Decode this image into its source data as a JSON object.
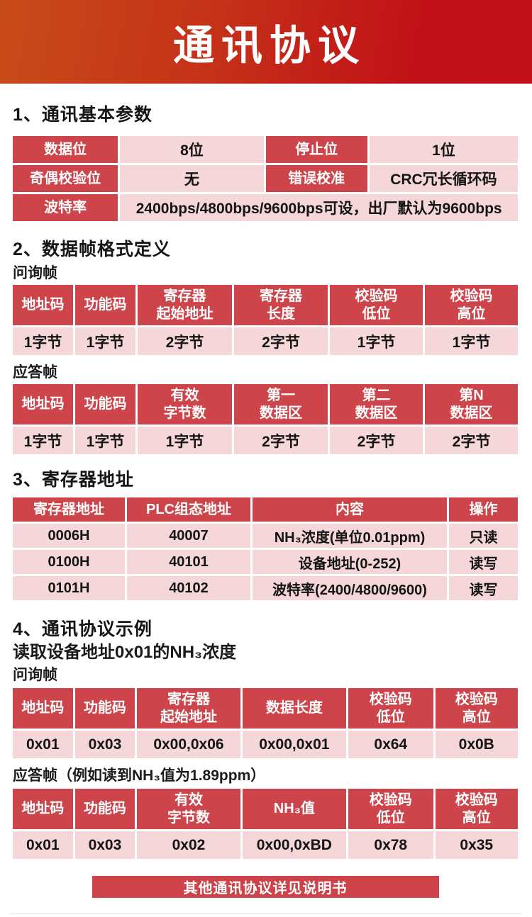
{
  "banner": {
    "title": "通讯协议"
  },
  "colors": {
    "banner_orange": "#c84b1a",
    "banner_red": "#c11019",
    "header_red": "#cd444b",
    "cell_pink": "#f5d6d9",
    "button_red": "#ce4349"
  },
  "sections": {
    "s1": {
      "heading": "1、通讯基本参数",
      "rows": {
        "r1": {
          "k1": "数据位",
          "v1": "8位",
          "k2": "停止位",
          "v2": "1位"
        },
        "r2": {
          "k1": "奇偶校验位",
          "v1": "无",
          "k2": "错误校准",
          "v2": "CRC冗长循环码"
        },
        "r3": {
          "k": "波特率",
          "v": "2400bps/4800bps/9600bps可设，出厂默认为9600bps"
        }
      }
    },
    "s2": {
      "heading": "2、数据帧格式定义",
      "query_label": "问询帧",
      "query": {
        "headers": [
          "地址码",
          "功能码",
          "寄存器\n起始地址",
          "寄存器\n长度",
          "校验码\n低位",
          "校验码\n高位"
        ],
        "values": [
          "1字节",
          "1字节",
          "2字节",
          "2字节",
          "1字节",
          "1字节"
        ]
      },
      "response_label": "应答帧",
      "response": {
        "headers": [
          "地址码",
          "功能码",
          "有效\n字节数",
          "第一\n数据区",
          "第二\n数据区",
          "第N\n数据区"
        ],
        "values": [
          "1字节",
          "1字节",
          "1字节",
          "2字节",
          "2字节",
          "2字节"
        ]
      }
    },
    "s3": {
      "heading": "3、寄存器地址",
      "headers": [
        "寄存器地址",
        "PLC组态地址",
        "内容",
        "操作"
      ],
      "rows": [
        [
          "0006H",
          "40007",
          "NH₃浓度(单位0.01ppm)",
          "只读"
        ],
        [
          "0100H",
          "40101",
          "设备地址(0-252)",
          "读写"
        ],
        [
          "0101H",
          "40102",
          "波特率(2400/4800/9600)",
          "读写"
        ]
      ]
    },
    "s4": {
      "heading": "4、通讯协议示例",
      "subtitle": "读取设备地址0x01的NH₃浓度",
      "query_label": "问询帧",
      "query": {
        "headers": [
          "地址码",
          "功能码",
          "寄存器\n起始地址",
          "数据长度",
          "校验码\n低位",
          "校验码\n高位"
        ],
        "values": [
          "0x01",
          "0x03",
          "0x00,0x06",
          "0x00,0x01",
          "0x64",
          "0x0B"
        ]
      },
      "response_label": "应答帧（例如读到NH₃值为1.89ppm）",
      "response": {
        "headers": [
          "地址码",
          "功能码",
          "有效\n字节数",
          "NH₃值",
          "校验码\n低位",
          "校验码\n高位"
        ],
        "values": [
          "0x01",
          "0x03",
          "0x02",
          "0x00,0xBD",
          "0x78",
          "0x35"
        ]
      }
    }
  },
  "footer": {
    "button": "其他通讯协议详见说明书"
  }
}
